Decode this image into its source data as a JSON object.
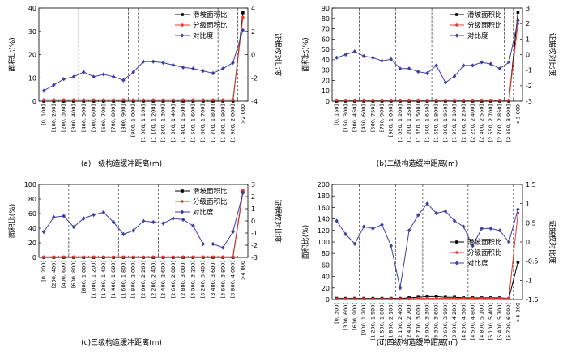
{
  "chart_data": [
    {
      "type": "line",
      "panel": "a",
      "caption": "(a)一级构造缓冲距离(m)",
      "ylabel": "面积比(%)",
      "y2label": "证据权对比度",
      "ylim": [
        0,
        40
      ],
      "yticks": [
        0,
        10,
        20,
        30,
        40
      ],
      "y2lim": [
        -4,
        4
      ],
      "y2ticks": [
        -4,
        -2,
        0,
        2,
        4
      ],
      "categories": [
        "[0, 100]",
        "[100, 200]",
        "[200, 300]",
        "[300, 400]",
        "[400, 500]",
        "[500, 600]",
        "[600, 700]",
        "[700, 800]",
        "[800, 900]",
        "[900, 1 000]",
        "[1 000, 1 100]",
        "[1 100, 1 200]",
        "[1 200, 1 300]",
        "[1 300, 1 400]",
        "[1 400, 1 500]",
        "[1 500, 1 600]",
        "[1 600, 1 700]",
        "[1 700, 1 800]",
        "[1 800, 1 900]",
        "[1 900, 2 000]",
        ">2 000"
      ],
      "dividers_after": [
        3,
        8,
        9,
        17,
        19
      ],
      "legend_pos": "top-right",
      "series": [
        {
          "name": "滑坡面积比",
          "axis": "left",
          "color": "#000000",
          "marker": "square",
          "values": [
            0,
            0,
            0,
            0,
            0,
            0,
            0,
            0,
            0,
            0,
            0,
            0,
            0,
            0,
            0,
            0,
            0,
            0,
            0,
            0,
            38
          ]
        },
        {
          "name": "分级面积比",
          "axis": "left",
          "color": "#e8382e",
          "marker": "circle",
          "values": [
            0.6,
            0.6,
            0.6,
            0.6,
            0.6,
            0.6,
            0.6,
            0.6,
            0.6,
            0.6,
            0.6,
            0.6,
            0.6,
            0.6,
            0.6,
            0.6,
            0.6,
            0.6,
            0.6,
            0.6,
            36
          ]
        },
        {
          "name": "对比度",
          "axis": "right",
          "color": "#3c3fa6",
          "marker": "diamond",
          "values": [
            -3.1,
            -2.6,
            -2.1,
            -1.9,
            -1.5,
            -1.9,
            -1.7,
            -1.9,
            -2.2,
            -1.5,
            -0.6,
            -0.6,
            -0.7,
            -0.9,
            -1.1,
            -1.2,
            -1.4,
            -1.6,
            -1.2,
            -0.7,
            2.1
          ]
        }
      ]
    },
    {
      "type": "line",
      "panel": "b",
      "caption": "(b)二级构造缓冲距离(m)",
      "ylabel": "面积比(%)",
      "y2label": "证据权对比度",
      "ylim": [
        0,
        90
      ],
      "yticks": [
        0,
        10,
        20,
        30,
        40,
        50,
        60,
        70,
        80,
        90
      ],
      "y2lim": [
        -3,
        3
      ],
      "y2ticks": [
        -3,
        -2,
        -1,
        0,
        1,
        2,
        3
      ],
      "categories": [
        "[0, 150]",
        "[150, 300]",
        "[300, 450]",
        "[450, 600]",
        "[600, 750]",
        "[750, 900]",
        "[900, 1 050]",
        "[1 050, 1 200]",
        "[1 200, 1 350]",
        "[1 350, 1 500]",
        "[1 500, 1 650]",
        "[1 650, 1 800]",
        "[1 800, 1 950]",
        "[1 950, 2 100]",
        "[2 100, 2 250]",
        "[2 250, 2 400]",
        "[2 400, 2 550]",
        "[2 550, 2 700]",
        "[2 700, 2 850]",
        "[2 850, 3 000]",
        ">3 000"
      ],
      "dividers_after": [
        2,
        6,
        10,
        12,
        18,
        19
      ],
      "legend_pos": "top-right",
      "series": [
        {
          "name": "滑坡面积比",
          "axis": "left",
          "color": "#000000",
          "marker": "square",
          "values": [
            0,
            0,
            0,
            0,
            0,
            0,
            0,
            0,
            0,
            0,
            0,
            0,
            0,
            0,
            0,
            0,
            0,
            0,
            0,
            0,
            86
          ]
        },
        {
          "name": "分级面积比",
          "axis": "left",
          "color": "#e8382e",
          "marker": "circle",
          "values": [
            1,
            1,
            1,
            1,
            1,
            1,
            1,
            1,
            1,
            1,
            1,
            1,
            1,
            1,
            1,
            1,
            1,
            1,
            1,
            1,
            75
          ]
        },
        {
          "name": "对比度",
          "axis": "right",
          "color": "#3c3fa6",
          "marker": "diamond",
          "values": [
            -0.2,
            0,
            0.2,
            -0.1,
            -0.2,
            -0.4,
            -0.3,
            -0.9,
            -0.9,
            -1.1,
            -1.2,
            -0.7,
            -1.8,
            -1.4,
            -0.7,
            -0.7,
            -0.5,
            -0.6,
            -0.9,
            -0.5,
            2.2
          ]
        }
      ]
    },
    {
      "type": "line",
      "panel": "c",
      "caption": "(c)三级构造缓冲距离(m)",
      "ylabel": "面积比(%)",
      "y2label": "证据权对比度",
      "ylim": [
        0,
        100
      ],
      "yticks": [
        0,
        20,
        40,
        60,
        80,
        100
      ],
      "y2lim": [
        -3,
        3
      ],
      "y2ticks": [
        -3,
        -2,
        -1,
        0,
        1,
        2,
        3
      ],
      "categories": [
        "[0, 200]",
        "[200, 400]",
        "[400, 600]",
        "[600, 800]",
        "[800, 1 000]",
        "[1 000, 1 200]",
        "[1 200, 1 400]",
        "[1 400, 1 600]",
        "[1 600, 1 800]",
        "[1 800, 2 000]",
        "[2 000, 2 200]",
        "[2 200, 2 400]",
        "[2 400, 2 600]",
        "[2 600, 2 800]",
        "[2 800, 3 000]",
        "[3 000, 3 200]",
        "[3 200, 3 400]",
        "[3 400, 3 600]",
        "[3 600, 3 800]",
        "[3 800, 4 000]",
        ">4 000"
      ],
      "dividers_after": [
        2,
        7,
        11,
        15,
        18
      ],
      "legend_pos": "top-right",
      "series": [
        {
          "name": "滑坡面积比",
          "axis": "left",
          "color": "#000000",
          "marker": "square",
          "values": [
            0,
            0,
            0,
            0,
            0,
            0,
            0,
            0,
            0,
            0,
            0,
            0,
            0,
            0,
            0,
            0,
            0,
            0,
            0,
            0,
            90
          ]
        },
        {
          "name": "分级面积比",
          "axis": "left",
          "color": "#e8382e",
          "marker": "circle",
          "values": [
            0.8,
            0.8,
            0.8,
            0.8,
            0.8,
            0.8,
            0.8,
            0.8,
            0.8,
            0.8,
            0.8,
            0.8,
            0.8,
            0.8,
            0.8,
            0.8,
            0.8,
            0.8,
            0.8,
            0.8,
            92
          ]
        },
        {
          "name": "对比度",
          "axis": "right",
          "color": "#3c3fa6",
          "marker": "diamond",
          "values": [
            -0.9,
            0.3,
            0.4,
            -0.5,
            0.2,
            0.5,
            0.7,
            -0.1,
            -1.1,
            -0.8,
            0,
            -0.1,
            -0.2,
            0.2,
            0.1,
            -0.4,
            -1.9,
            -1.9,
            -2.2,
            -0.9,
            2.3
          ]
        }
      ]
    },
    {
      "type": "line",
      "panel": "d",
      "caption": "(d)四级构造缓冲距离(m)",
      "ylabel": "面积比(%)",
      "y2label": "证据权对比度",
      "ylim": [
        0,
        200
      ],
      "yticks": [
        0,
        20,
        40,
        60,
        80,
        100,
        120,
        140,
        160,
        180,
        200
      ],
      "y2lim": [
        -1.5,
        1.5
      ],
      "y2ticks": [
        -1.5,
        -1.0,
        -0.5,
        0,
        0.5,
        1.0,
        1.5
      ],
      "categories": [
        "[0, 300]",
        "[300, 600]",
        "[600, 900]",
        "[900, 1 200]",
        "[1 200, 1 500]",
        "[1 500, 1 800]",
        "[1 800, 2 100]",
        "[2 100, 2 400]",
        "[2 400, 2 700]",
        "[2 700, 3 000]",
        "[3 000, 3 300]",
        "[3 300, 3 600]",
        "[3 600, 3 900]",
        "[3 900, 4 200]",
        "[4 200, 4 500]",
        "[4 500, 4 800]",
        "[4 800, 5 100]",
        "[5 100, 5 400]",
        "[5 400, 5 700]",
        "[5 700, 6 000]",
        ">6 000"
      ],
      "dividers_after": [
        2,
        6,
        9,
        14,
        19
      ],
      "legend_pos": "right",
      "series": [
        {
          "name": "滑坡面积比",
          "axis": "left",
          "color": "#000000",
          "marker": "square",
          "values": [
            2,
            2,
            2,
            2,
            2,
            2,
            2,
            2,
            3,
            4,
            5,
            5,
            4,
            4,
            3,
            3,
            3,
            3,
            3,
            2,
            65
          ]
        },
        {
          "name": "分级面积比",
          "axis": "left",
          "color": "#e8382e",
          "marker": "circle",
          "values": [
            1,
            1,
            1,
            1,
            1,
            1,
            1,
            1,
            1,
            2,
            2,
            2,
            2,
            2,
            2,
            2,
            2,
            2,
            2,
            2,
            150
          ]
        },
        {
          "name": "对比度",
          "axis": "right",
          "color": "#3c3fa6",
          "marker": "diamond",
          "values": [
            0.55,
            0.2,
            -0.05,
            0.4,
            0.35,
            0.45,
            -0.1,
            -1.2,
            0.3,
            0.7,
            1.0,
            0.75,
            0.8,
            0.55,
            0.4,
            -0.1,
            0.35,
            0.35,
            0.3,
            0,
            0.85
          ]
        }
      ]
    }
  ]
}
